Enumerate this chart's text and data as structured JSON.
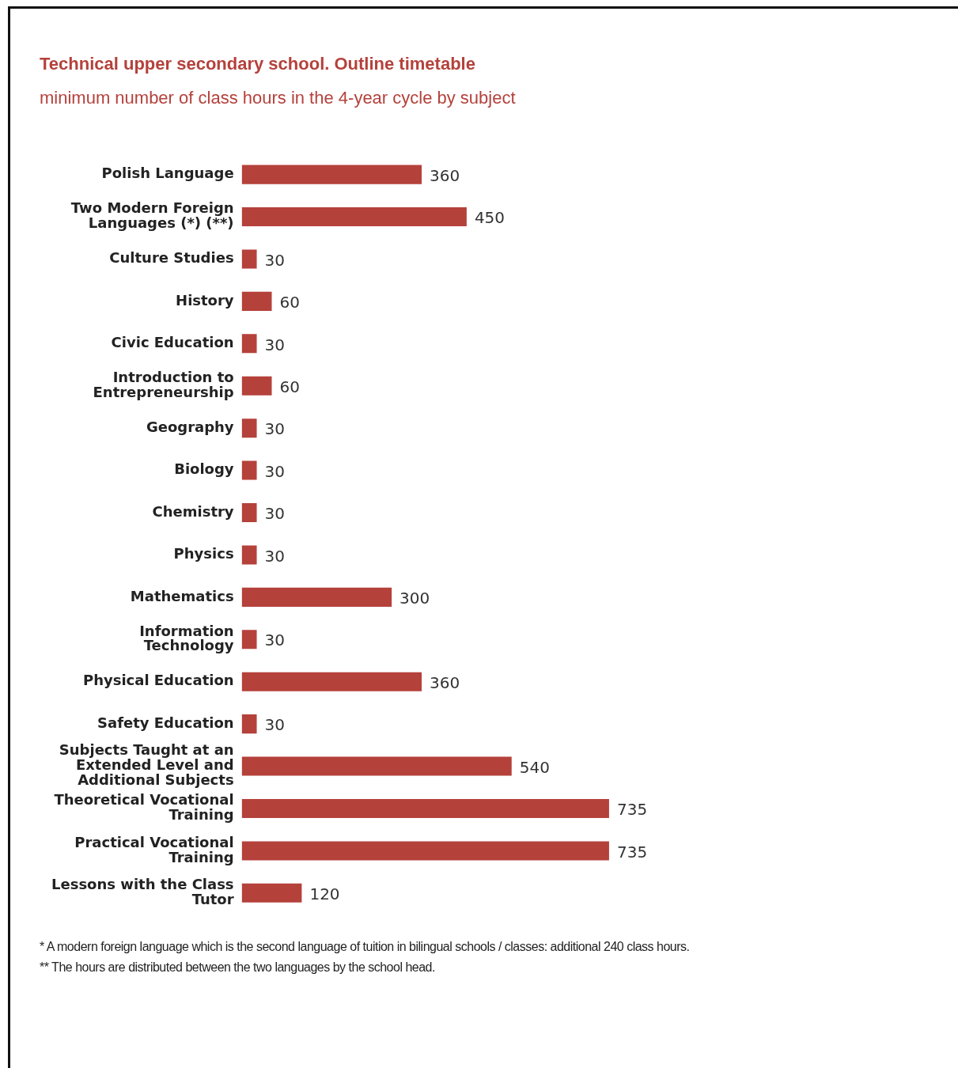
{
  "chart_data": {
    "type": "bar",
    "orientation": "horizontal",
    "title": "Technical upper secondary school. Outline timetable",
    "subtitle": "minimum number of class hours in the 4-year cycle by subject",
    "categories": [
      "Polish Language",
      "Two Modern Foreign Languages (*) (**)",
      "Culture Studies",
      "History",
      "Civic Education",
      "Introduction to Entrepreneurship",
      "Geography",
      "Biology",
      "Chemistry",
      "Physics",
      "Mathematics",
      "Information Technology",
      "Physical Education",
      "Safety Education",
      "Subjects Taught at an Extended Level and Additional Subjects",
      "Theoretical Vocational Training",
      "Practical Vocational Training",
      "Lessons with the Class Tutor"
    ],
    "values": [
      360,
      450,
      30,
      60,
      30,
      60,
      30,
      30,
      30,
      30,
      300,
      30,
      360,
      30,
      540,
      735,
      735,
      120
    ],
    "color": "#b5413b",
    "data_labels": true,
    "legend": false,
    "annotations": [
      "* A modern foreign language which is the second language of tuition in bilingual schools / classes: additional 240 class hours.",
      "** The hours are distributed between the two languages by the school head."
    ]
  }
}
